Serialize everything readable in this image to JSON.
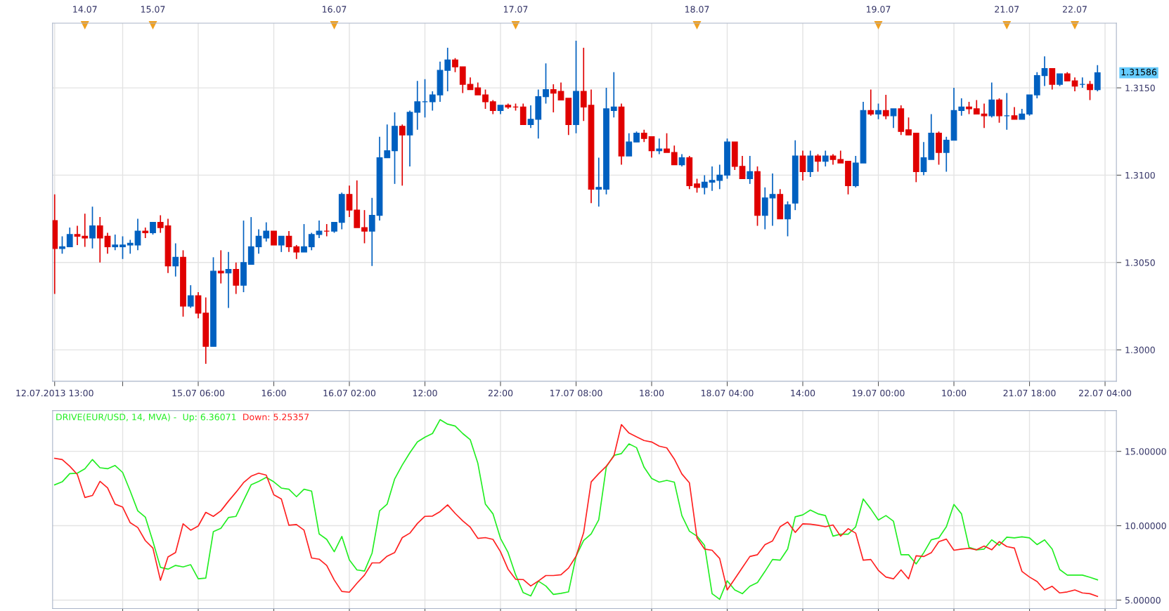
{
  "chart_data": [
    {
      "type": "candlestick",
      "categories": [
        "12.07.2013 13:00",
        null,
        null,
        null,
        null,
        null,
        null,
        null,
        null,
        null,
        null,
        null,
        null,
        null,
        null,
        null,
        null,
        null,
        null,
        "15.07 06:00",
        null,
        null,
        null,
        null,
        null,
        null,
        null,
        null,
        null,
        "16:00",
        null,
        null,
        null,
        null,
        null,
        null,
        null,
        null,
        null,
        "16.07 02:00",
        null,
        null,
        null,
        null,
        null,
        null,
        null,
        null,
        null,
        "12:00",
        null,
        null,
        null,
        null,
        null,
        null,
        null,
        null,
        null,
        "22:00",
        null,
        null,
        null,
        null,
        null,
        null,
        null,
        null,
        null,
        "17.07 08:00",
        null,
        null,
        null,
        null,
        null,
        null,
        null,
        null,
        null,
        "18:00",
        null,
        null,
        null,
        null,
        null,
        null,
        null,
        null,
        null,
        "18.07 04:00",
        null,
        null,
        null,
        null,
        null,
        null,
        null,
        null,
        null,
        "14:00",
        null,
        null,
        null,
        null,
        null,
        null,
        null,
        null,
        null,
        "19.07 00:00",
        null,
        null,
        null,
        null,
        null,
        null,
        null,
        null,
        null,
        "10:00",
        null,
        null,
        null,
        null,
        null,
        null,
        null,
        null,
        null,
        "21.07 18:00",
        null,
        null,
        null,
        null,
        null,
        null,
        null,
        null,
        null,
        "22.07 04:00"
      ],
      "ohlc": [
        [
          1.3074,
          1.3089,
          1.3032,
          1.3058
        ],
        [
          1.3058,
          1.3065,
          1.3055,
          1.3059
        ],
        [
          1.3059,
          1.307,
          1.3059,
          1.3066
        ],
        [
          1.3066,
          1.3071,
          1.306,
          1.3065
        ],
        [
          1.3065,
          1.3078,
          1.3059,
          1.3064
        ],
        [
          1.3064,
          1.3082,
          1.3058,
          1.3071
        ],
        [
          1.3071,
          1.3076,
          1.305,
          1.3064
        ],
        [
          1.3065,
          1.3067,
          1.3055,
          1.3059
        ],
        [
          1.3059,
          1.3066,
          1.3057,
          1.306
        ],
        [
          1.3059,
          1.3065,
          1.3052,
          1.306
        ],
        [
          1.306,
          1.3063,
          1.3055,
          1.3061
        ],
        [
          1.306,
          1.3075,
          1.3057,
          1.3068
        ],
        [
          1.3068,
          1.307,
          1.3064,
          1.3067
        ],
        [
          1.3067,
          1.3073,
          1.3066,
          1.3073
        ],
        [
          1.3073,
          1.3077,
          1.3067,
          1.307
        ],
        [
          1.3071,
          1.3075,
          1.3044,
          1.3048
        ],
        [
          1.3048,
          1.3061,
          1.3042,
          1.3053
        ],
        [
          1.3053,
          1.3057,
          1.3019,
          1.3025
        ],
        [
          1.3025,
          1.3037,
          1.3024,
          1.3031
        ],
        [
          1.3031,
          1.3033,
          1.3018,
          1.3021
        ],
        [
          1.3021,
          1.303,
          1.2992,
          1.3002
        ],
        [
          1.3002,
          1.3053,
          1.3002,
          1.3045
        ],
        [
          1.3045,
          1.3057,
          1.3038,
          1.3044
        ],
        [
          1.3044,
          1.3056,
          1.3024,
          1.3046
        ],
        [
          1.3046,
          1.305,
          1.3032,
          1.3037
        ],
        [
          1.3037,
          1.3074,
          1.3033,
          1.305
        ],
        [
          1.3049,
          1.3076,
          1.3049,
          1.3059
        ],
        [
          1.3059,
          1.3069,
          1.3055,
          1.3065
        ],
        [
          1.3064,
          1.3073,
          1.3062,
          1.3068
        ],
        [
          1.3068,
          1.3068,
          1.306,
          1.306
        ],
        [
          1.306,
          1.3065,
          1.3056,
          1.3065
        ],
        [
          1.3065,
          1.3068,
          1.3056,
          1.3059
        ],
        [
          1.3059,
          1.306,
          1.3052,
          1.3056
        ],
        [
          1.3056,
          1.3072,
          1.3056,
          1.3059
        ],
        [
          1.3059,
          1.3067,
          1.3057,
          1.3066
        ],
        [
          1.3066,
          1.3074,
          1.3064,
          1.3068
        ],
        [
          1.3068,
          1.3072,
          1.3065,
          1.3068
        ],
        [
          1.3068,
          1.3073,
          1.3067,
          1.3073
        ],
        [
          1.3073,
          1.309,
          1.3069,
          1.3089
        ],
        [
          1.3089,
          1.3094,
          1.3076,
          1.308
        ],
        [
          1.308,
          1.3097,
          1.307,
          1.307
        ],
        [
          1.307,
          1.308,
          1.3061,
          1.3068
        ],
        [
          1.3068,
          1.3087,
          1.3048,
          1.3077
        ],
        [
          1.3077,
          1.3122,
          1.3074,
          1.311
        ],
        [
          1.311,
          1.3129,
          1.311,
          1.3114
        ],
        [
          1.3114,
          1.3136,
          1.3095,
          1.3128
        ],
        [
          1.3128,
          1.3129,
          1.3094,
          1.3123
        ],
        [
          1.3123,
          1.3137,
          1.3105,
          1.3136
        ],
        [
          1.3136,
          1.3154,
          1.3126,
          1.3142
        ],
        [
          1.3142,
          1.3155,
          1.3133,
          1.3142
        ],
        [
          1.3142,
          1.3148,
          1.3137,
          1.3146
        ],
        [
          1.3146,
          1.3165,
          1.3142,
          1.316
        ],
        [
          1.316,
          1.3173,
          1.3148,
          1.3166
        ],
        [
          1.3166,
          1.3167,
          1.3159,
          1.3162
        ],
        [
          1.3162,
          1.3162,
          1.3147,
          1.3152
        ],
        [
          1.3152,
          1.3156,
          1.3149,
          1.3149
        ],
        [
          1.315,
          1.3153,
          1.3146,
          1.3146
        ],
        [
          1.3146,
          1.3149,
          1.3138,
          1.3142
        ],
        [
          1.3142,
          1.3143,
          1.3135,
          1.3137
        ],
        [
          1.3137,
          1.314,
          1.3135,
          1.314
        ],
        [
          1.314,
          1.3141,
          1.3138,
          1.3139
        ],
        [
          1.3139,
          1.3141,
          1.3137,
          1.3139
        ],
        [
          1.3139,
          1.3141,
          1.3129,
          1.3129
        ],
        [
          1.3129,
          1.314,
          1.3127,
          1.3132
        ],
        [
          1.3132,
          1.3149,
          1.3121,
          1.3145
        ],
        [
          1.3145,
          1.3164,
          1.3141,
          1.3149
        ],
        [
          1.3149,
          1.3152,
          1.3136,
          1.3147
        ],
        [
          1.3148,
          1.3153,
          1.3143,
          1.3143
        ],
        [
          1.3144,
          1.3144,
          1.3123,
          1.3129
        ],
        [
          1.3129,
          1.3177,
          1.3124,
          1.3148
        ],
        [
          1.3148,
          1.3173,
          1.3131,
          1.3139
        ],
        [
          1.314,
          1.3149,
          1.3084,
          1.3092
        ],
        [
          1.3092,
          1.311,
          1.3082,
          1.3093
        ],
        [
          1.3092,
          1.315,
          1.3089,
          1.3138
        ],
        [
          1.3137,
          1.3159,
          1.3133,
          1.3139
        ],
        [
          1.3139,
          1.3141,
          1.3106,
          1.3111
        ],
        [
          1.3111,
          1.3124,
          1.3111,
          1.3119
        ],
        [
          1.3119,
          1.3125,
          1.3119,
          1.3124
        ],
        [
          1.3124,
          1.3126,
          1.3119,
          1.3121
        ],
        [
          1.3122,
          1.3122,
          1.311,
          1.3114
        ],
        [
          1.3114,
          1.3121,
          1.3112,
          1.3115
        ],
        [
          1.3115,
          1.3124,
          1.3113,
          1.3113
        ],
        [
          1.3113,
          1.3117,
          1.3106,
          1.3106
        ],
        [
          1.3106,
          1.3112,
          1.3105,
          1.311
        ],
        [
          1.311,
          1.3111,
          1.3092,
          1.3094
        ],
        [
          1.3095,
          1.3098,
          1.309,
          1.3093
        ],
        [
          1.3093,
          1.31,
          1.3089,
          1.3096
        ],
        [
          1.3096,
          1.3105,
          1.3091,
          1.3097
        ],
        [
          1.3097,
          1.3106,
          1.3092,
          1.31
        ],
        [
          1.31,
          1.3121,
          1.3098,
          1.3119
        ],
        [
          1.3119,
          1.3119,
          1.3103,
          1.3105
        ],
        [
          1.3105,
          1.3111,
          1.3098,
          1.3098
        ],
        [
          1.3098,
          1.3111,
          1.3095,
          1.3102
        ],
        [
          1.3102,
          1.3105,
          1.3071,
          1.3077
        ],
        [
          1.3077,
          1.3093,
          1.3069,
          1.3087
        ],
        [
          1.3087,
          1.3101,
          1.3071,
          1.3089
        ],
        [
          1.3089,
          1.3092,
          1.3075,
          1.3075
        ],
        [
          1.3075,
          1.3085,
          1.3065,
          1.3083
        ],
        [
          1.3084,
          1.312,
          1.308,
          1.3111
        ],
        [
          1.3111,
          1.3114,
          1.3097,
          1.3102
        ],
        [
          1.3102,
          1.3114,
          1.3099,
          1.3111
        ],
        [
          1.3111,
          1.3112,
          1.3102,
          1.3108
        ],
        [
          1.3108,
          1.3114,
          1.3105,
          1.3111
        ],
        [
          1.3111,
          1.3112,
          1.3106,
          1.3109
        ],
        [
          1.3109,
          1.3114,
          1.3107,
          1.3107
        ],
        [
          1.3108,
          1.3108,
          1.3089,
          1.3094
        ],
        [
          1.3094,
          1.3111,
          1.3093,
          1.3107
        ],
        [
          1.3107,
          1.3142,
          1.3107,
          1.3137
        ],
        [
          1.3137,
          1.3149,
          1.3134,
          1.3135
        ],
        [
          1.3135,
          1.3141,
          1.3132,
          1.3137
        ],
        [
          1.3137,
          1.3146,
          1.3132,
          1.3134
        ],
        [
          1.3134,
          1.3138,
          1.3127,
          1.3138
        ],
        [
          1.3138,
          1.314,
          1.3123,
          1.3125
        ],
        [
          1.3126,
          1.3133,
          1.3123,
          1.3123
        ],
        [
          1.3124,
          1.3124,
          1.3096,
          1.3102
        ],
        [
          1.3102,
          1.3119,
          1.31,
          1.311
        ],
        [
          1.3109,
          1.3135,
          1.3109,
          1.3124
        ],
        [
          1.3124,
          1.3125,
          1.3106,
          1.3113
        ],
        [
          1.3113,
          1.3122,
          1.3102,
          1.312
        ],
        [
          1.312,
          1.315,
          1.312,
          1.3137
        ],
        [
          1.3137,
          1.3144,
          1.3134,
          1.3139
        ],
        [
          1.3139,
          1.3142,
          1.3135,
          1.3138
        ],
        [
          1.3138,
          1.3143,
          1.3135,
          1.3135
        ],
        [
          1.3135,
          1.3141,
          1.3127,
          1.3134
        ],
        [
          1.3134,
          1.3153,
          1.3133,
          1.3143
        ],
        [
          1.3143,
          1.3144,
          1.313,
          1.3134
        ],
        [
          1.3134,
          1.3147,
          1.3126,
          1.3134
        ],
        [
          1.3134,
          1.3139,
          1.3132,
          1.3132
        ],
        [
          1.3132,
          1.3138,
          1.3132,
          1.3135
        ],
        [
          1.3135,
          1.3146,
          1.3134,
          1.3146
        ],
        [
          1.3146,
          1.3159,
          1.3144,
          1.3157
        ],
        [
          1.3157,
          1.3168,
          1.3151,
          1.3161
        ],
        [
          1.3161,
          1.3161,
          1.3149,
          1.3152
        ],
        [
          1.3152,
          1.3158,
          1.3151,
          1.3158
        ],
        [
          1.3158,
          1.3159,
          1.3154,
          1.3154
        ],
        [
          1.3154,
          1.3156,
          1.3148,
          1.3151
        ],
        [
          1.3152,
          1.3156,
          1.315,
          1.3152
        ],
        [
          1.3152,
          1.3154,
          1.3143,
          1.3149
        ],
        [
          1.3149,
          1.3163,
          1.3148,
          1.31586
        ],
        null
      ],
      "colors": [
        "#e00000",
        "#0060c0",
        "#0060c0",
        "#e00000",
        "#e00000",
        "#0060c0",
        "#e00000",
        "#e00000",
        "#0060c0",
        "#0060c0",
        "#0060c0",
        "#0060c0",
        "#e00000",
        "#0060c0",
        "#e00000",
        "#e00000",
        "#0060c0",
        "#e00000",
        "#0060c0",
        "#e00000",
        "#e00000",
        "#0060c0",
        "#e00000",
        "#0060c0",
        "#e00000",
        "#0060c0",
        "#0060c0",
        "#0060c0",
        "#0060c0",
        "#e00000",
        "#0060c0",
        "#e00000",
        "#e00000",
        "#0060c0",
        "#0060c0",
        "#0060c0",
        "#e00000",
        "#0060c0",
        "#0060c0",
        "#e00000",
        "#e00000",
        "#e00000",
        "#0060c0",
        "#0060c0",
        "#0060c0",
        "#0060c0",
        "#e00000",
        "#0060c0",
        "#0060c0",
        "#0060c0",
        "#0060c0",
        "#0060c0",
        "#0060c0",
        "#e00000",
        "#e00000",
        "#e00000",
        "#e00000",
        "#e00000",
        "#e00000",
        "#0060c0",
        "#e00000",
        "#e00000",
        "#e00000",
        "#0060c0",
        "#0060c0",
        "#0060c0",
        "#e00000",
        "#e00000",
        "#e00000",
        "#0060c0",
        "#e00000",
        "#e00000",
        "#0060c0",
        "#0060c0",
        "#0060c0",
        "#e00000",
        "#0060c0",
        "#0060c0",
        "#e00000",
        "#e00000",
        "#0060c0",
        "#e00000",
        "#e00000",
        "#0060c0",
        "#e00000",
        "#e00000",
        "#0060c0",
        "#0060c0",
        "#0060c0",
        "#0060c0",
        "#e00000",
        "#e00000",
        "#0060c0",
        "#e00000",
        "#0060c0",
        "#0060c0",
        "#e00000",
        "#0060c0",
        "#0060c0",
        "#e00000",
        "#0060c0",
        "#e00000",
        "#0060c0",
        "#e00000",
        "#e00000",
        "#e00000",
        "#0060c0",
        "#0060c0",
        "#e00000",
        "#0060c0",
        "#e00000",
        "#0060c0",
        "#e00000",
        "#e00000",
        "#e00000",
        "#0060c0",
        "#0060c0",
        "#e00000",
        "#0060c0",
        "#0060c0",
        "#0060c0",
        "#e00000",
        "#e00000",
        "#e00000",
        "#0060c0",
        "#e00000",
        "#0060c0",
        "#e00000",
        "#0060c0",
        "#0060c0",
        "#0060c0",
        "#0060c0",
        "#e00000",
        "#0060c0",
        "#e00000",
        "#e00000",
        "#0060c0",
        "#e00000",
        "#0060c0",
        null
      ],
      "ylim": [
        1.2982,
        1.3187
      ],
      "yticks": [
        {
          "value": 1.3,
          "label": "1.3000"
        },
        {
          "value": 1.305,
          "label": "1.3050"
        },
        {
          "value": 1.31,
          "label": "1.3100"
        },
        {
          "value": 1.315,
          "label": "1.3150"
        }
      ],
      "grid": true,
      "annotations": [
        "1.31586",
        "14.07",
        "15.07",
        "16.07",
        "17.07",
        "18.07",
        "19.07",
        "21.07",
        "22.07"
      ]
    },
    {
      "type": "line",
      "title": "DRIVE(EUR/USD, 14, MVA) -",
      "categories": [
        null,
        null,
        null,
        null,
        null,
        null,
        null,
        null,
        null,
        null,
        null,
        null,
        null,
        null,
        null,
        null,
        null,
        null,
        null,
        null,
        null,
        null,
        null,
        null,
        null,
        null,
        null,
        null,
        null,
        null,
        null,
        null,
        null,
        null,
        null,
        null,
        null,
        null,
        null,
        null,
        null,
        null,
        null,
        null,
        null,
        null,
        null,
        null,
        null,
        null,
        null,
        null,
        null,
        null,
        null,
        null,
        null,
        null,
        null,
        null,
        null,
        null,
        null,
        null,
        null,
        null,
        null,
        null,
        null,
        null,
        null,
        null,
        null,
        null,
        null,
        null,
        null,
        null,
        null,
        null,
        null,
        null,
        null,
        null,
        null,
        null,
        null,
        null,
        null,
        null,
        null,
        null,
        null,
        null,
        null,
        null,
        null,
        null,
        null,
        null,
        null,
        null,
        null,
        null,
        null,
        null,
        null,
        null,
        null,
        null,
        null,
        null,
        null,
        null,
        null,
        null,
        null,
        null,
        null,
        null,
        null,
        null,
        null,
        null,
        null,
        null,
        null,
        null,
        null,
        null,
        null,
        null,
        null,
        null,
        null,
        null,
        null,
        null,
        null,
        null
      ],
      "series": [
        {
          "name": "Up: 6.36071",
          "color": "#22ee22",
          "values": [
            12.75,
            12.95,
            13.5,
            13.53,
            13.83,
            14.45,
            13.9,
            13.83,
            14.05,
            13.58,
            12.33,
            11.0,
            10.58,
            8.95,
            7.2,
            7.08,
            7.33,
            7.23,
            7.38,
            6.43,
            6.48,
            9.6,
            9.83,
            10.55,
            10.63,
            11.7,
            12.75,
            12.98,
            13.25,
            12.95,
            12.53,
            12.45,
            11.95,
            12.45,
            12.33,
            9.45,
            9.08,
            8.25,
            9.28,
            7.7,
            7.03,
            6.95,
            8.15,
            11.0,
            11.45,
            13.15,
            14.08,
            14.9,
            15.63,
            15.95,
            16.2,
            17.13,
            16.83,
            16.7,
            16.2,
            15.78,
            14.2,
            11.45,
            10.8,
            9.15,
            8.2,
            6.7,
            5.5,
            5.28,
            6.28,
            5.95,
            5.38,
            5.45,
            5.55,
            7.95,
            9.0,
            9.45,
            10.4,
            13.95,
            14.73,
            14.85,
            15.5,
            15.25,
            13.93,
            13.18,
            12.93,
            13.05,
            12.93,
            10.68,
            9.63,
            9.3,
            8.68,
            5.43,
            5.05,
            6.3,
            5.68,
            5.43,
            5.93,
            6.18,
            6.93,
            7.73,
            7.68,
            8.43,
            10.6,
            10.73,
            11.05,
            10.8,
            10.68,
            9.3,
            9.43,
            9.43,
            9.93,
            11.8,
            11.13,
            10.38,
            10.68,
            10.3,
            8.05,
            8.05,
            7.43,
            8.18,
            9.05,
            9.18,
            9.93,
            11.43,
            10.8,
            8.55,
            8.38,
            8.43,
            9.05,
            8.68,
            9.23,
            9.18,
            9.25,
            9.18,
            8.73,
            9.05,
            8.43,
            7.05,
            6.68,
            6.68,
            6.68,
            6.53,
            6.36,
            null
          ]
        },
        {
          "name": "Down: 5.25357",
          "color": "#ff2020",
          "values": [
            14.53,
            14.45,
            14.0,
            13.45,
            11.9,
            12.03,
            12.98,
            12.55,
            11.45,
            11.25,
            10.2,
            9.88,
            9.0,
            8.5,
            6.33,
            7.9,
            8.2,
            10.13,
            9.7,
            9.98,
            10.9,
            10.63,
            11.0,
            11.65,
            12.25,
            12.9,
            13.33,
            13.53,
            13.4,
            12.08,
            11.8,
            10.03,
            10.08,
            9.7,
            7.83,
            7.75,
            7.33,
            6.35,
            5.58,
            5.53,
            6.13,
            6.68,
            7.5,
            7.5,
            7.95,
            8.2,
            9.2,
            9.5,
            10.15,
            10.63,
            10.65,
            10.95,
            11.4,
            10.83,
            10.33,
            9.9,
            9.15,
            9.2,
            9.08,
            8.25,
            7.08,
            6.4,
            6.38,
            5.95,
            6.28,
            6.65,
            6.65,
            6.7,
            7.15,
            7.95,
            9.53,
            12.95,
            13.5,
            14.0,
            14.68,
            16.8,
            16.23,
            15.98,
            15.73,
            15.63,
            15.35,
            15.23,
            14.48,
            13.48,
            12.88,
            9.18,
            8.43,
            8.35,
            7.8,
            5.68,
            6.43,
            7.18,
            7.93,
            8.05,
            8.73,
            8.98,
            9.93,
            10.25,
            9.55,
            10.13,
            10.1,
            10.03,
            9.93,
            10.05,
            9.3,
            9.8,
            9.5,
            7.68,
            7.73,
            7.0,
            6.55,
            6.43,
            7.03,
            6.43,
            7.98,
            7.93,
            8.18,
            8.93,
            9.1,
            8.35,
            8.43,
            8.48,
            8.38,
            8.63,
            8.38,
            8.93,
            8.6,
            8.5,
            6.93,
            6.55,
            6.25,
            5.68,
            5.93,
            5.48,
            5.55,
            5.68,
            5.48,
            5.43,
            5.25,
            null
          ]
        }
      ],
      "ylim": [
        4.43,
        17.74
      ],
      "yticks": [
        {
          "value": 5,
          "label": "5.00000"
        },
        {
          "value": 10,
          "label": "10.00000"
        },
        {
          "value": 15,
          "label": "15.00000"
        }
      ],
      "tick_labels": "y",
      "grid": true,
      "legend": "top left"
    }
  ]
}
